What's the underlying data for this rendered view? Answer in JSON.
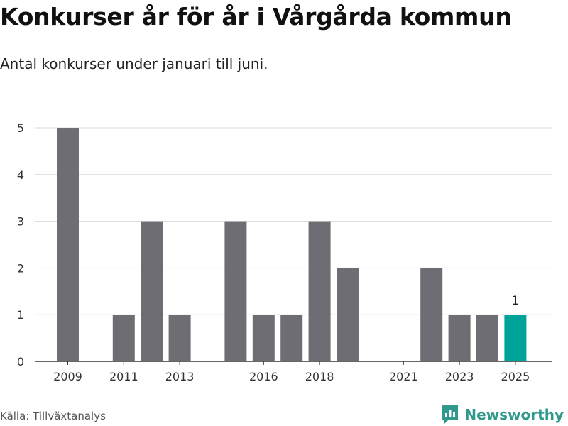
{
  "title": "Konkurser år för år i Vårgårda kommun",
  "subtitle": "Antal konkurser under januari till juni.",
  "source": "Källa: Tillväxtanalys",
  "brand": "Newsworthy",
  "colors": {
    "bar": "#6e6d74",
    "highlight": "#00a39a",
    "grid": "#d9d9d9",
    "axis": "#333333"
  },
  "chart_data": {
    "type": "bar",
    "years": [
      2009,
      2010,
      2011,
      2012,
      2013,
      2014,
      2015,
      2016,
      2017,
      2018,
      2019,
      2020,
      2021,
      2022,
      2023,
      2024,
      2025
    ],
    "values": [
      5,
      0,
      1,
      3,
      1,
      0,
      3,
      1,
      1,
      3,
      2,
      0,
      0,
      2,
      1,
      1,
      1
    ],
    "tick_labels": [
      "2009",
      "2011",
      "2013",
      "2016",
      "2018",
      "2021",
      "2023",
      "2025"
    ],
    "y_ticks": [
      0,
      1,
      2,
      3,
      4,
      5
    ],
    "ylim": [
      0,
      5
    ],
    "highlight": {
      "year": 2025,
      "label": "1"
    },
    "grid": true
  }
}
